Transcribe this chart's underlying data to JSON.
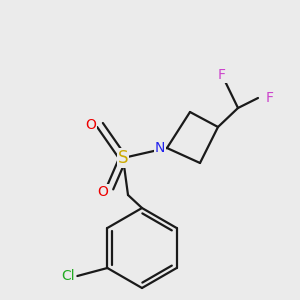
{
  "background_color": "#ebebeb",
  "bond_color": "#1a1a1a",
  "bond_width": 1.6,
  "atom_labels": [
    {
      "text": "F",
      "color": "#cc44cc",
      "fontsize": 10
    },
    {
      "text": "F",
      "color": "#cc44cc",
      "fontsize": 10
    },
    {
      "text": "N",
      "color": "#2222ee",
      "fontsize": 10
    },
    {
      "text": "S",
      "color": "#ccaa00",
      "fontsize": 12
    },
    {
      "text": "O",
      "color": "#ee0000",
      "fontsize": 10
    },
    {
      "text": "O",
      "color": "#ee0000",
      "fontsize": 10
    },
    {
      "text": "Cl",
      "color": "#22aa22",
      "fontsize": 10
    }
  ]
}
